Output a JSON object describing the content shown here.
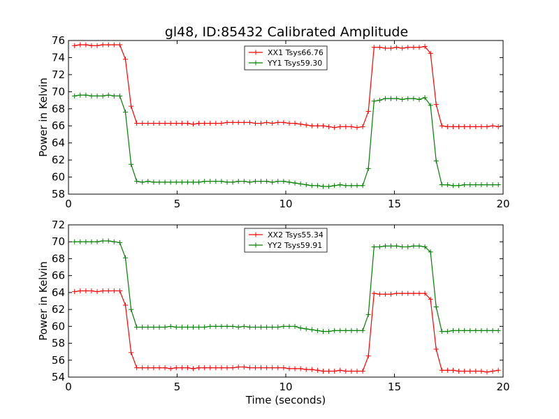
{
  "title": "gl48, ID:85432 Calibrated Amplitude",
  "chart_data": [
    {
      "type": "line",
      "ylabel": "Power in Kelvin",
      "xlabel": "",
      "xlim": [
        0,
        20
      ],
      "ylim": [
        58,
        76
      ],
      "xticks": [
        0,
        5,
        10,
        15,
        20
      ],
      "yticks": [
        58,
        60,
        62,
        64,
        66,
        68,
        70,
        72,
        74,
        76
      ],
      "grid": false,
      "legend": "upper-center",
      "series": [
        {
          "name": "XX1 Tsys66.76",
          "color": "#ff0000",
          "x": [
            0.28,
            0.54,
            0.8,
            1.06,
            1.32,
            1.58,
            1.84,
            2.1,
            2.36,
            2.62,
            2.88,
            3.14,
            3.4,
            3.66,
            3.92,
            4.18,
            4.44,
            4.7,
            4.96,
            5.22,
            5.48,
            5.74,
            6.0,
            6.26,
            6.52,
            6.78,
            7.04,
            7.3,
            7.56,
            7.82,
            8.08,
            8.34,
            8.6,
            8.86,
            9.12,
            9.38,
            9.64,
            9.9,
            10.16,
            10.42,
            10.68,
            10.94,
            11.2,
            11.46,
            11.72,
            11.98,
            12.24,
            12.5,
            12.76,
            13.02,
            13.28,
            13.54,
            13.8,
            14.06,
            14.32,
            14.58,
            14.84,
            15.1,
            15.36,
            15.62,
            15.88,
            16.14,
            16.4,
            16.66,
            16.92,
            17.18,
            17.44,
            17.7,
            17.96,
            18.22,
            18.48,
            18.74,
            19.0,
            19.26,
            19.52,
            19.78
          ],
          "y": [
            75.4,
            75.5,
            75.5,
            75.4,
            75.4,
            75.5,
            75.5,
            75.5,
            75.5,
            73.8,
            68.3,
            66.3,
            66.3,
            66.3,
            66.3,
            66.3,
            66.3,
            66.3,
            66.3,
            66.3,
            66.3,
            66.2,
            66.3,
            66.3,
            66.3,
            66.3,
            66.3,
            66.4,
            66.4,
            66.4,
            66.4,
            66.4,
            66.3,
            66.3,
            66.4,
            66.3,
            66.4,
            66.4,
            66.3,
            66.3,
            66.2,
            66.1,
            66.0,
            66.0,
            66.0,
            65.9,
            65.8,
            65.9,
            65.9,
            65.9,
            65.8,
            65.9,
            67.7,
            75.2,
            75.2,
            75.1,
            75.1,
            75.2,
            75.1,
            75.2,
            75.2,
            75.2,
            75.3,
            74.5,
            68.5,
            66.0,
            65.9,
            65.9,
            65.9,
            65.9,
            65.9,
            65.9,
            65.9,
            65.9,
            66.0,
            65.9
          ]
        },
        {
          "name": "YY1 Tsys59.30",
          "color": "#008000",
          "x": [
            0.28,
            0.54,
            0.8,
            1.06,
            1.32,
            1.58,
            1.84,
            2.1,
            2.36,
            2.62,
            2.88,
            3.14,
            3.4,
            3.66,
            3.92,
            4.18,
            4.44,
            4.7,
            4.96,
            5.22,
            5.48,
            5.74,
            6.0,
            6.26,
            6.52,
            6.78,
            7.04,
            7.3,
            7.56,
            7.82,
            8.08,
            8.34,
            8.6,
            8.86,
            9.12,
            9.38,
            9.64,
            9.9,
            10.16,
            10.42,
            10.68,
            10.94,
            11.2,
            11.46,
            11.72,
            11.98,
            12.24,
            12.5,
            12.76,
            13.02,
            13.28,
            13.54,
            13.8,
            14.06,
            14.32,
            14.58,
            14.84,
            15.1,
            15.36,
            15.62,
            15.88,
            16.14,
            16.4,
            16.66,
            16.92,
            17.18,
            17.44,
            17.7,
            17.96,
            18.22,
            18.48,
            18.74,
            19.0,
            19.26,
            19.52,
            19.78
          ],
          "y": [
            69.5,
            69.6,
            69.6,
            69.5,
            69.5,
            69.5,
            69.6,
            69.5,
            69.5,
            67.6,
            61.5,
            59.5,
            59.4,
            59.5,
            59.4,
            59.4,
            59.4,
            59.4,
            59.4,
            59.4,
            59.4,
            59.4,
            59.4,
            59.5,
            59.5,
            59.5,
            59.5,
            59.4,
            59.4,
            59.5,
            59.5,
            59.4,
            59.5,
            59.5,
            59.5,
            59.4,
            59.5,
            59.5,
            59.4,
            59.3,
            59.2,
            59.1,
            59.0,
            59.0,
            58.9,
            58.9,
            59.0,
            59.1,
            59.0,
            59.0,
            59.0,
            59.0,
            61.0,
            68.9,
            69.0,
            69.2,
            69.2,
            69.2,
            69.1,
            69.2,
            69.2,
            69.1,
            69.3,
            68.4,
            61.9,
            59.1,
            59.1,
            59.0,
            59.0,
            59.1,
            59.1,
            59.1,
            59.1,
            59.1,
            59.1,
            59.1
          ]
        }
      ]
    },
    {
      "type": "line",
      "ylabel": "Power in Kelvin",
      "xlabel": "Time (seconds)",
      "xlim": [
        0,
        20
      ],
      "ylim": [
        54,
        72
      ],
      "xticks": [
        0,
        5,
        10,
        15,
        20
      ],
      "yticks": [
        54,
        56,
        58,
        60,
        62,
        64,
        66,
        68,
        70,
        72
      ],
      "grid": false,
      "legend": "upper-center",
      "series": [
        {
          "name": "XX2 Tsys55.34",
          "color": "#ff0000",
          "x": [
            0.28,
            0.54,
            0.8,
            1.06,
            1.32,
            1.58,
            1.84,
            2.1,
            2.36,
            2.62,
            2.88,
            3.14,
            3.4,
            3.66,
            3.92,
            4.18,
            4.44,
            4.7,
            4.96,
            5.22,
            5.48,
            5.74,
            6.0,
            6.26,
            6.52,
            6.78,
            7.04,
            7.3,
            7.56,
            7.82,
            8.08,
            8.34,
            8.6,
            8.86,
            9.12,
            9.38,
            9.64,
            9.9,
            10.16,
            10.42,
            10.68,
            10.94,
            11.2,
            11.46,
            11.72,
            11.98,
            12.24,
            12.5,
            12.76,
            13.02,
            13.28,
            13.54,
            13.8,
            14.06,
            14.32,
            14.58,
            14.84,
            15.1,
            15.36,
            15.62,
            15.88,
            16.14,
            16.4,
            16.66,
            16.92,
            17.18,
            17.44,
            17.7,
            17.96,
            18.22,
            18.48,
            18.74,
            19.0,
            19.26,
            19.52,
            19.78
          ],
          "y": [
            64.1,
            64.2,
            64.2,
            64.2,
            64.1,
            64.2,
            64.2,
            64.2,
            64.2,
            62.5,
            56.9,
            55.1,
            55.1,
            55.1,
            55.1,
            55.1,
            55.1,
            55.0,
            55.1,
            55.1,
            55.1,
            55.0,
            55.1,
            55.1,
            55.1,
            55.1,
            55.1,
            55.1,
            55.1,
            55.2,
            55.2,
            55.1,
            55.1,
            55.1,
            55.1,
            55.1,
            55.1,
            55.1,
            55.0,
            55.0,
            55.0,
            54.9,
            54.9,
            54.8,
            54.7,
            54.7,
            54.7,
            54.8,
            54.7,
            54.7,
            54.7,
            54.7,
            56.5,
            63.9,
            63.8,
            63.8,
            63.8,
            63.9,
            63.9,
            63.9,
            63.9,
            63.9,
            63.9,
            63.2,
            57.3,
            54.8,
            54.8,
            54.8,
            54.7,
            54.7,
            54.7,
            54.7,
            54.7,
            54.6,
            54.7,
            54.8
          ]
        },
        {
          "name": "YY2 Tsys59.91",
          "color": "#008000",
          "x": [
            0.28,
            0.54,
            0.8,
            1.06,
            1.32,
            1.58,
            1.84,
            2.1,
            2.36,
            2.62,
            2.88,
            3.14,
            3.4,
            3.66,
            3.92,
            4.18,
            4.44,
            4.7,
            4.96,
            5.22,
            5.48,
            5.74,
            6.0,
            6.26,
            6.52,
            6.78,
            7.04,
            7.3,
            7.56,
            7.82,
            8.08,
            8.34,
            8.6,
            8.86,
            9.12,
            9.38,
            9.64,
            9.9,
            10.16,
            10.42,
            10.68,
            10.94,
            11.2,
            11.46,
            11.72,
            11.98,
            12.24,
            12.5,
            12.76,
            13.02,
            13.28,
            13.54,
            13.8,
            14.06,
            14.32,
            14.58,
            14.84,
            15.1,
            15.36,
            15.62,
            15.88,
            16.14,
            16.4,
            16.66,
            16.92,
            17.18,
            17.44,
            17.7,
            17.96,
            18.22,
            18.48,
            18.74,
            19.0,
            19.26,
            19.52,
            19.78
          ],
          "y": [
            70.0,
            70.0,
            70.0,
            70.0,
            70.0,
            70.1,
            70.1,
            70.0,
            69.9,
            68.1,
            62.0,
            59.9,
            59.9,
            59.9,
            59.9,
            59.9,
            59.9,
            60.0,
            59.9,
            59.9,
            59.9,
            59.9,
            59.9,
            59.9,
            60.0,
            60.0,
            60.0,
            60.0,
            60.0,
            59.9,
            60.0,
            59.9,
            59.9,
            59.9,
            59.9,
            59.9,
            59.9,
            60.0,
            60.0,
            60.0,
            59.8,
            59.7,
            59.6,
            59.5,
            59.4,
            59.4,
            59.5,
            59.5,
            59.5,
            59.5,
            59.5,
            59.5,
            61.4,
            69.4,
            69.4,
            69.5,
            69.5,
            69.5,
            69.4,
            69.4,
            69.5,
            69.5,
            69.4,
            68.8,
            62.3,
            59.4,
            59.4,
            59.5,
            59.5,
            59.5,
            59.5,
            59.5,
            59.5,
            59.5,
            59.5,
            59.5
          ]
        }
      ]
    }
  ]
}
